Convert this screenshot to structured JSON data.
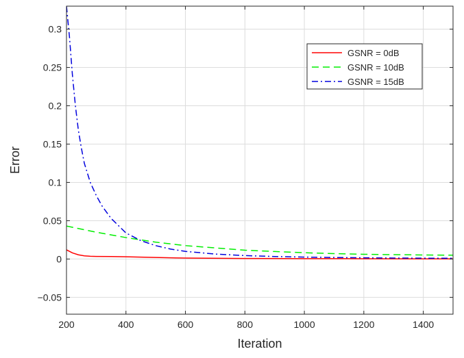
{
  "chart_data": {
    "type": "line",
    "xlabel": "Iteration",
    "ylabel": "Error",
    "xlim": [
      200,
      1500
    ],
    "ylim": [
      -0.072,
      0.33
    ],
    "x_ticks": [
      200,
      400,
      600,
      800,
      1000,
      1200,
      1400
    ],
    "x_tick_labels": [
      "200",
      "400",
      "600",
      "800",
      "1000",
      "1200",
      "1400"
    ],
    "y_ticks": [
      -0.05,
      0,
      0.05,
      0.1,
      0.15,
      0.2,
      0.25,
      0.3
    ],
    "y_tick_labels": [
      "−0.05",
      "0",
      "0.05",
      "0.1",
      "0.15",
      "0.2",
      "0.25",
      "0.3"
    ],
    "grid": true,
    "legend_position": "top-right",
    "series": [
      {
        "name": "GSNR = 0dB",
        "color": "#ff0000",
        "dash": "solid",
        "x": [
          200,
          220,
          240,
          260,
          280,
          300,
          350,
          400,
          500,
          600,
          800,
          1000,
          1200,
          1400,
          1500
        ],
        "y": [
          0.012,
          0.008,
          0.0055,
          0.0042,
          0.0036,
          0.0034,
          0.0033,
          0.0029,
          0.002,
          0.0012,
          0.0007,
          0.0005,
          0.0004,
          0.0003,
          0.0003
        ]
      },
      {
        "name": "GSNR = 10dB",
        "color": "#00ee00",
        "dash": "dashed",
        "x": [
          200,
          300,
          400,
          500,
          600,
          700,
          800,
          900,
          1000,
          1100,
          1200,
          1300,
          1400,
          1500
        ],
        "y": [
          0.043,
          0.035,
          0.028,
          0.022,
          0.0175,
          0.0145,
          0.0115,
          0.0098,
          0.0082,
          0.0071,
          0.0062,
          0.0057,
          0.0053,
          0.005
        ]
      },
      {
        "name": "GSNR = 15dB",
        "color": "#0000dd",
        "dash": "dashdot",
        "x": [
          200,
          210,
          220,
          230,
          240,
          250,
          260,
          280,
          300,
          320,
          350,
          400,
          450,
          500,
          550,
          600,
          700,
          800,
          900,
          1000,
          1100,
          1200,
          1300,
          1400,
          1500
        ],
        "y": [
          0.33,
          0.29,
          0.24,
          0.2,
          0.168,
          0.145,
          0.125,
          0.1,
          0.083,
          0.069,
          0.053,
          0.034,
          0.024,
          0.0175,
          0.013,
          0.01,
          0.0065,
          0.0045,
          0.0033,
          0.0025,
          0.002,
          0.0016,
          0.0013,
          0.0011,
          0.001
        ]
      }
    ]
  }
}
